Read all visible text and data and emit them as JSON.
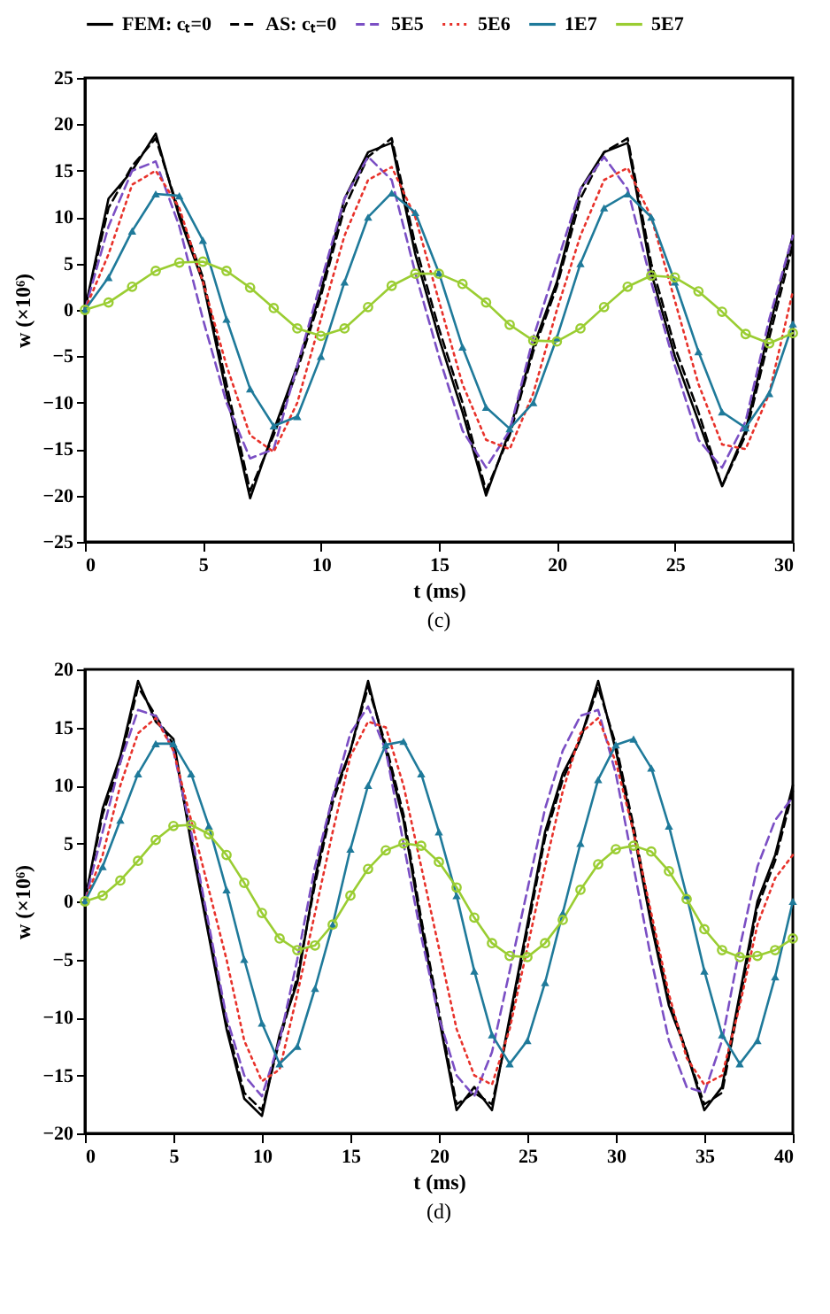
{
  "chart_data": [
    {
      "type": "line",
      "title": "(c)",
      "xlabel": "t (ms)",
      "ylabel": "w (×10⁶)",
      "xlim": [
        0,
        30
      ],
      "ylim": [
        -25,
        25
      ],
      "xticks": [
        0,
        5,
        10,
        15,
        20,
        25,
        30
      ],
      "yticks": [
        -25,
        -20,
        -15,
        -10,
        -5,
        0,
        5,
        10,
        15,
        20,
        25
      ],
      "grid": false,
      "legend": "top",
      "x": [
        0,
        1,
        2,
        3,
        4,
        5,
        6,
        7,
        8,
        9,
        10,
        11,
        12,
        13,
        14,
        15,
        16,
        17,
        18,
        19,
        20,
        21,
        22,
        23,
        24,
        25,
        26,
        27,
        28,
        29,
        30
      ],
      "series": [
        {
          "name": "FEM: cₜ=0",
          "color": "#000000",
          "line_style": "solid",
          "marker": "none",
          "values": [
            0,
            12,
            15,
            19,
            10,
            3,
            -9,
            -20.3,
            -13,
            -6,
            2,
            12,
            17,
            18,
            6,
            -3,
            -11,
            -20,
            -13,
            -4,
            3,
            13,
            17,
            18,
            4,
            -5,
            -12,
            -19,
            -13,
            -2,
            8
          ]
        },
        {
          "name": "AS: cₜ=0",
          "color": "#000000",
          "line_style": "dashed",
          "marker": "none",
          "values": [
            0,
            11,
            15.5,
            18.5,
            10.5,
            3.5,
            -8,
            -19.5,
            -13.5,
            -6.5,
            1.5,
            11,
            16.5,
            18.5,
            7,
            -2,
            -10,
            -19.5,
            -13.5,
            -4.5,
            2.5,
            12,
            17,
            18.5,
            5,
            -4,
            -11,
            -19,
            -13.5,
            -3,
            7
          ]
        },
        {
          "name": "5E5",
          "color": "#7b4fc4",
          "line_style": "dashed",
          "marker": "none",
          "values": [
            0,
            9,
            15,
            16,
            9,
            -1,
            -10,
            -16,
            -15,
            -6,
            3,
            12,
            16.5,
            14,
            4,
            -5,
            -13,
            -17,
            -13,
            -3,
            5,
            13,
            16.5,
            13,
            3,
            -6,
            -14,
            -17,
            -12,
            -1,
            8
          ]
        },
        {
          "name": "5E6",
          "color": "#e8322b",
          "line_style": "dotted",
          "marker": "none",
          "values": [
            0,
            6,
            13.5,
            15,
            11,
            3,
            -6,
            -13.5,
            -15.3,
            -10,
            -1,
            8,
            14,
            15.4,
            10,
            1,
            -8,
            -14,
            -15,
            -9,
            0,
            8,
            14,
            15.3,
            10,
            1,
            -8,
            -14.5,
            -15,
            -9,
            2
          ]
        },
        {
          "name": "1E7",
          "color": "#1f7a9a",
          "line_style": "solid",
          "marker": "triangle",
          "values": [
            0,
            3.5,
            8.5,
            12.5,
            12.3,
            7.5,
            -1,
            -8.5,
            -12.5,
            -11.5,
            -5,
            3,
            10,
            12.6,
            10.5,
            4,
            -4,
            -10.5,
            -12.8,
            -10,
            -3,
            5,
            11,
            12.5,
            10,
            3,
            -4.5,
            -11,
            -12.7,
            -9,
            -1.5
          ]
        },
        {
          "name": "5E7",
          "color": "#9acd32",
          "line_style": "solid",
          "marker": "circle",
          "values": [
            0,
            0.8,
            2.5,
            4.2,
            5.1,
            5.2,
            4.2,
            2.4,
            0.2,
            -2,
            -2.8,
            -2,
            0.3,
            2.6,
            3.9,
            3.9,
            2.8,
            0.8,
            -1.6,
            -3.3,
            -3.4,
            -2,
            0.3,
            2.5,
            3.7,
            3.5,
            2,
            -0.2,
            -2.6,
            -3.6,
            -2.5
          ]
        }
      ]
    },
    {
      "type": "line",
      "title": "(d)",
      "xlabel": "t (ms)",
      "ylabel": "w (×10⁶)",
      "xlim": [
        0,
        40
      ],
      "ylim": [
        -20,
        20
      ],
      "xticks": [
        0,
        5,
        10,
        15,
        20,
        25,
        30,
        35,
        40
      ],
      "yticks": [
        -20,
        -15,
        -10,
        -5,
        0,
        5,
        10,
        15,
        20
      ],
      "grid": false,
      "legend": "top",
      "x": [
        0,
        1,
        2,
        3,
        4,
        5,
        6,
        7,
        8,
        9,
        10,
        11,
        12,
        13,
        14,
        15,
        16,
        17,
        18,
        19,
        20,
        21,
        22,
        23,
        24,
        25,
        26,
        27,
        28,
        29,
        30,
        31,
        32,
        33,
        34,
        35,
        36,
        37,
        38,
        39,
        40
      ],
      "series": [
        {
          "name": "FEM: cₜ=0",
          "color": "#000000",
          "line_style": "solid",
          "marker": "none",
          "values": [
            0,
            8,
            12.5,
            19,
            15.5,
            14,
            5,
            -3,
            -11,
            -17,
            -18.5,
            -11.5,
            -7,
            2,
            9,
            13,
            19,
            13,
            7,
            -2,
            -10,
            -18,
            -16,
            -18,
            -10,
            -2,
            6,
            11,
            14,
            19,
            13,
            6,
            -2,
            -9,
            -13,
            -18,
            -16,
            -8,
            0,
            4,
            10
          ]
        },
        {
          "name": "AS: cₜ=0",
          "color": "#000000",
          "line_style": "dashed",
          "marker": "none",
          "values": [
            0,
            7.5,
            12,
            18.5,
            16,
            13.5,
            5.5,
            -2.5,
            -10.5,
            -16.5,
            -18,
            -12,
            -6.5,
            1.5,
            8.5,
            13,
            18.5,
            13.5,
            7.5,
            -1.5,
            -9.5,
            -17.5,
            -16.5,
            -17.5,
            -10.5,
            -2.5,
            5.5,
            10.5,
            14,
            18.5,
            13.5,
            6.5,
            -1.5,
            -8.5,
            -13,
            -17.5,
            -16.5,
            -8.5,
            -0.5,
            3.5,
            9.5
          ]
        },
        {
          "name": "5E5",
          "color": "#7b4fc4",
          "line_style": "dashed",
          "marker": "none",
          "values": [
            0,
            6,
            12,
            16.5,
            16,
            13,
            6,
            -2,
            -10,
            -15,
            -16.8,
            -12,
            -5,
            3,
            9,
            14.5,
            16.8,
            13,
            5,
            -3,
            -10,
            -15,
            -16.8,
            -13,
            -6,
            1,
            8,
            13,
            16,
            16.5,
            11,
            3,
            -5,
            -12,
            -16,
            -16.5,
            -12,
            -4,
            3,
            7,
            9
          ]
        },
        {
          "name": "5E6",
          "color": "#e8322b",
          "line_style": "dotted",
          "marker": "none",
          "values": [
            0,
            4,
            10,
            14.5,
            15.8,
            13,
            7,
            1,
            -5,
            -12,
            -15.5,
            -14.5,
            -8,
            -1,
            6,
            12.5,
            15.5,
            15,
            10,
            3,
            -4,
            -11,
            -15,
            -15.8,
            -11,
            -4,
            3,
            9.5,
            14.5,
            15.8,
            12,
            6,
            -1,
            -8,
            -13.5,
            -15.8,
            -15,
            -9,
            -2,
            2,
            4
          ]
        },
        {
          "name": "1E7",
          "color": "#1f7a9a",
          "line_style": "solid",
          "marker": "triangle",
          "values": [
            0,
            3,
            7,
            11,
            13.6,
            13.6,
            11,
            6.5,
            1,
            -5,
            -10.5,
            -14,
            -12.5,
            -7.5,
            -2,
            4.5,
            10,
            13.5,
            13.8,
            11,
            6,
            0.5,
            -6,
            -11.5,
            -14,
            -12,
            -7,
            -1,
            5,
            10.5,
            13.5,
            14,
            11.5,
            6.5,
            0.5,
            -6,
            -11.5,
            -14,
            -12,
            -6.5,
            0
          ]
        },
        {
          "name": "5E7",
          "color": "#9acd32",
          "line_style": "solid",
          "marker": "circle",
          "values": [
            0,
            0.5,
            1.8,
            3.5,
            5.3,
            6.5,
            6.6,
            5.8,
            4,
            1.6,
            -1,
            -3.2,
            -4.2,
            -3.8,
            -2,
            0.5,
            2.8,
            4.4,
            5,
            4.8,
            3.4,
            1.2,
            -1.4,
            -3.6,
            -4.7,
            -4.8,
            -3.6,
            -1.6,
            1,
            3.2,
            4.5,
            4.8,
            4.3,
            2.6,
            0.2,
            -2.4,
            -4.2,
            -4.8,
            -4.7,
            -4.2,
            -3.2
          ]
        }
      ]
    }
  ]
}
